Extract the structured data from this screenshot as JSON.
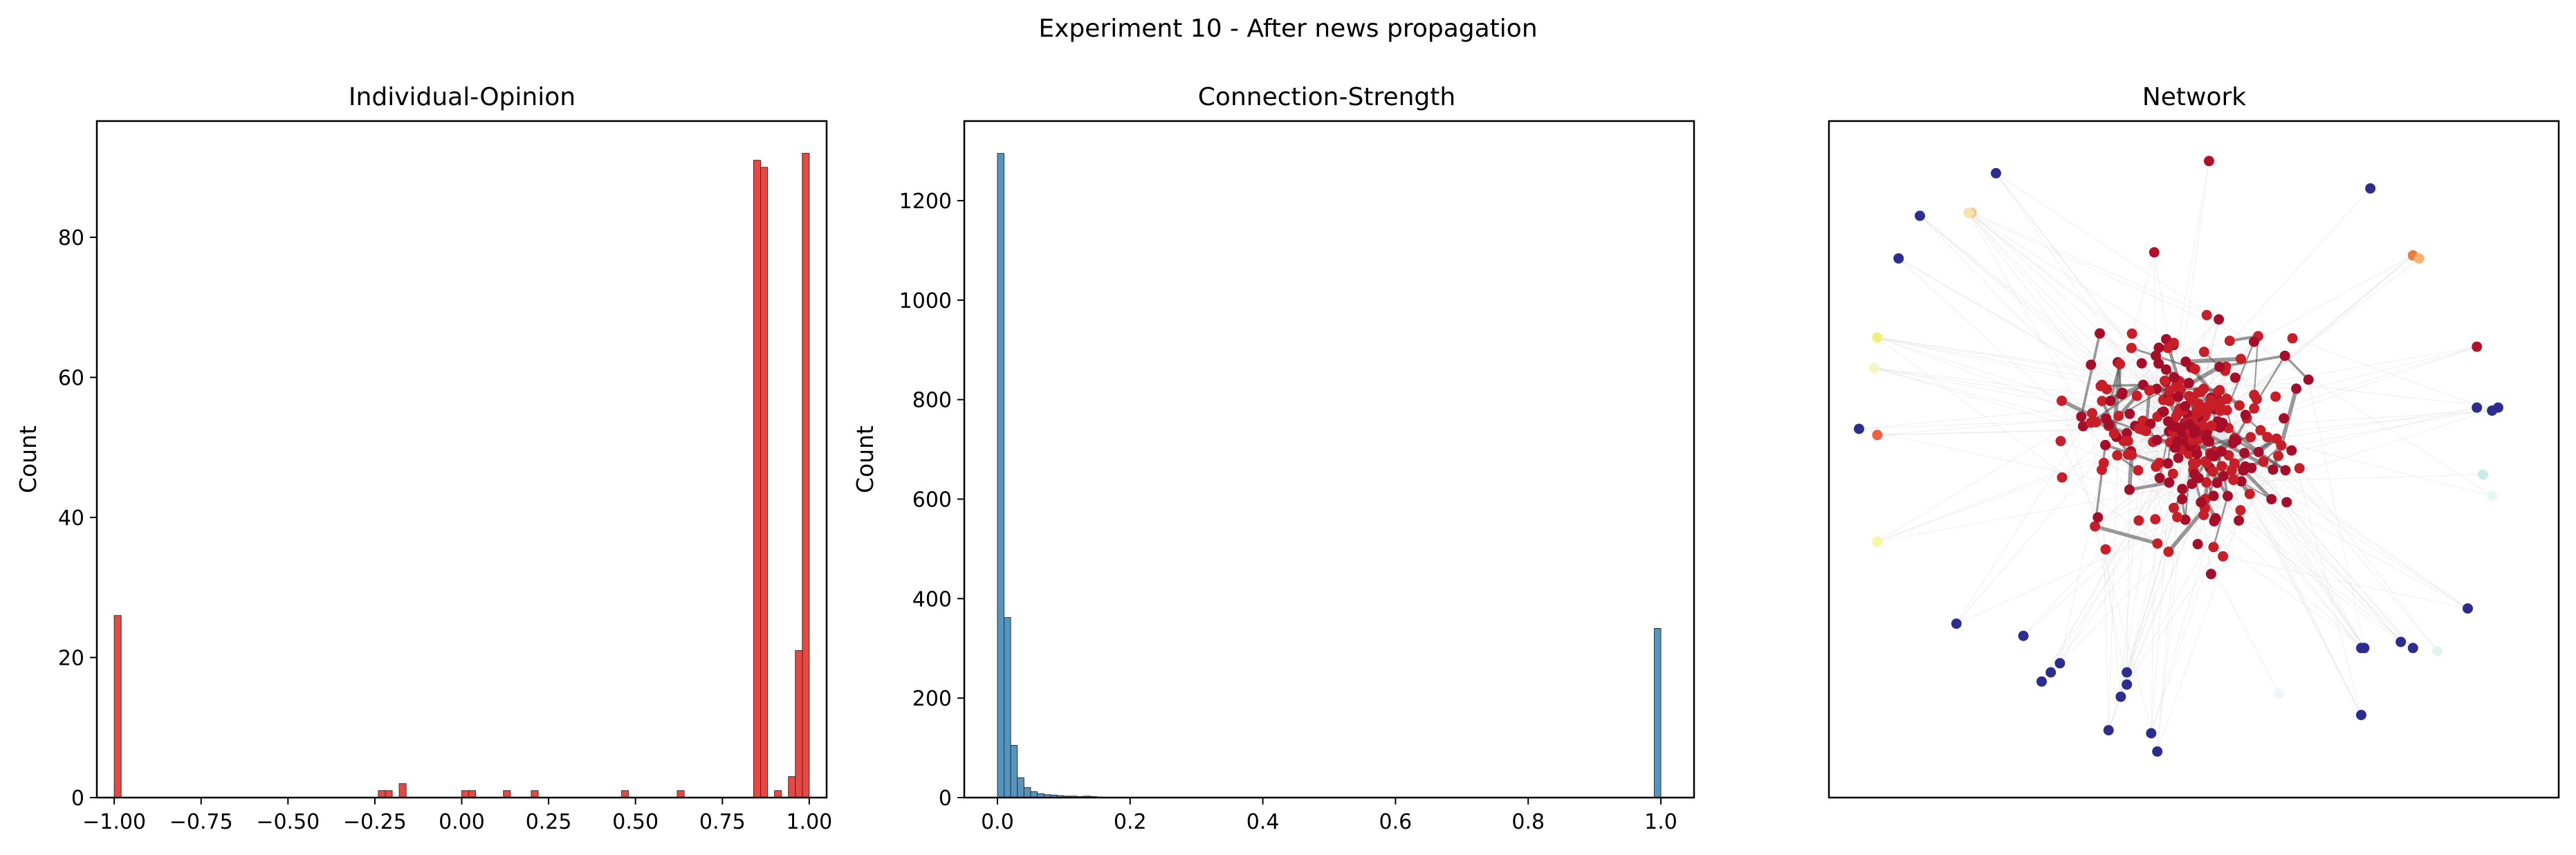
{
  "figure": {
    "suptitle": "Experiment 10 - After news propagation"
  },
  "chart_data": [
    {
      "type": "bar",
      "title": "Individual-Opinion",
      "xlabel": "",
      "ylabel": "Count",
      "xlim": [
        -1.05,
        1.05
      ],
      "ylim": [
        0,
        96.6
      ],
      "xticks": [
        -1.0,
        -0.75,
        -0.5,
        -0.25,
        0.0,
        0.25,
        0.5,
        0.75,
        1.0
      ],
      "xtick_labels": [
        "−1.00",
        "−0.75",
        "−0.50",
        "−0.25",
        "0.00",
        "0.25",
        "0.50",
        "0.75",
        "1.00"
      ],
      "yticks": [
        0,
        20,
        40,
        60,
        80
      ],
      "ytick_labels": [
        "0",
        "20",
        "40",
        "60",
        "80"
      ],
      "bar_color": "#e0201b",
      "bin_width": 0.02,
      "bars": [
        {
          "x": -1.0,
          "count": 26
        },
        {
          "x": -0.24,
          "count": 1
        },
        {
          "x": -0.22,
          "count": 1
        },
        {
          "x": -0.18,
          "count": 2
        },
        {
          "x": 0.0,
          "count": 1
        },
        {
          "x": 0.02,
          "count": 1
        },
        {
          "x": 0.12,
          "count": 1
        },
        {
          "x": 0.2,
          "count": 1
        },
        {
          "x": 0.46,
          "count": 1
        },
        {
          "x": 0.62,
          "count": 1
        },
        {
          "x": 0.84,
          "count": 91
        },
        {
          "x": 0.86,
          "count": 90
        },
        {
          "x": 0.9,
          "count": 1
        },
        {
          "x": 0.94,
          "count": 3
        },
        {
          "x": 0.96,
          "count": 21
        },
        {
          "x": 0.98,
          "count": 92
        }
      ]
    },
    {
      "type": "bar",
      "title": "Connection-Strength",
      "xlabel": "",
      "ylabel": "Count",
      "xlim": [
        -0.05,
        1.05
      ],
      "ylim": [
        0,
        1360
      ],
      "xticks": [
        0.0,
        0.2,
        0.4,
        0.6,
        0.8,
        1.0
      ],
      "xtick_labels": [
        "0.0",
        "0.2",
        "0.4",
        "0.6",
        "0.8",
        "1.0"
      ],
      "yticks": [
        0,
        200,
        400,
        600,
        800,
        1000,
        1200
      ],
      "ytick_labels": [
        "0",
        "200",
        "400",
        "600",
        "800",
        "1000",
        "1200"
      ],
      "bar_color": "#2e7cb0",
      "bin_width": 0.01,
      "bars": [
        {
          "x": 0.0,
          "count": 1295
        },
        {
          "x": 0.01,
          "count": 362
        },
        {
          "x": 0.02,
          "count": 105
        },
        {
          "x": 0.03,
          "count": 40
        },
        {
          "x": 0.04,
          "count": 20
        },
        {
          "x": 0.05,
          "count": 12
        },
        {
          "x": 0.06,
          "count": 8
        },
        {
          "x": 0.07,
          "count": 6
        },
        {
          "x": 0.08,
          "count": 5
        },
        {
          "x": 0.09,
          "count": 4
        },
        {
          "x": 0.1,
          "count": 3
        },
        {
          "x": 0.11,
          "count": 3
        },
        {
          "x": 0.12,
          "count": 2
        },
        {
          "x": 0.13,
          "count": 3
        },
        {
          "x": 0.14,
          "count": 2
        },
        {
          "x": 0.15,
          "count": 1
        },
        {
          "x": 0.99,
          "count": 340
        }
      ]
    },
    {
      "type": "scatter",
      "title": "Network",
      "xlabel": "",
      "ylabel": "",
      "xlim": [
        -1.0,
        1.0
      ],
      "ylim": [
        -1.0,
        1.0
      ],
      "grid": false,
      "edge_color_weak": "#e0e0e0",
      "edge_color_strong": "#555555",
      "outlier_nodes": [
        {
          "x": -0.65,
          "y": 0.94,
          "c": "#2b2e8f"
        },
        {
          "x": 0.05,
          "y": 0.98,
          "c": "#b5102a"
        },
        {
          "x": 0.58,
          "y": 0.89,
          "c": "#2b2e8f"
        },
        {
          "x": -0.9,
          "y": 0.8,
          "c": "#2b2e8f"
        },
        {
          "x": -0.97,
          "y": 0.66,
          "c": "#2b2e8f"
        },
        {
          "x": -0.73,
          "y": 0.81,
          "c": "#f5c890"
        },
        {
          "x": -0.74,
          "y": 0.81,
          "c": "#f9e0b0"
        },
        {
          "x": -0.13,
          "y": 0.68,
          "c": "#b5102a"
        },
        {
          "x": 0.72,
          "y": 0.67,
          "c": "#f07a3e"
        },
        {
          "x": 0.74,
          "y": 0.66,
          "c": "#f9b070"
        },
        {
          "x": -1.04,
          "y": 0.4,
          "c": "#eef07a"
        },
        {
          "x": -1.05,
          "y": 0.3,
          "c": "#f4f6c0"
        },
        {
          "x": 0.93,
          "y": 0.37,
          "c": "#b5102a"
        },
        {
          "x": 0.93,
          "y": 0.17,
          "c": "#2b2e8f"
        },
        {
          "x": 0.98,
          "y": 0.16,
          "c": "#2b2e8f"
        },
        {
          "x": 1.0,
          "y": 0.17,
          "c": "#2b2e8f"
        },
        {
          "x": -1.1,
          "y": 0.1,
          "c": "#2b2e8f"
        },
        {
          "x": -1.04,
          "y": 0.08,
          "c": "#f06040"
        },
        {
          "x": 0.95,
          "y": -0.05,
          "c": "#c8ecea"
        },
        {
          "x": 0.98,
          "y": -0.12,
          "c": "#e8f6f4"
        },
        {
          "x": -1.04,
          "y": -0.27,
          "c": "#f4f8a0"
        },
        {
          "x": -0.78,
          "y": -0.54,
          "c": "#2b2e8f"
        },
        {
          "x": -0.56,
          "y": -0.58,
          "c": "#2b2e8f"
        },
        {
          "x": 0.68,
          "y": -0.6,
          "c": "#2b2e8f"
        },
        {
          "x": 0.9,
          "y": -0.49,
          "c": "#2b2e8f"
        },
        {
          "x": 0.55,
          "y": -0.62,
          "c": "#2b2e8f"
        },
        {
          "x": 0.56,
          "y": -0.62,
          "c": "#2b2e8f"
        },
        {
          "x": 0.72,
          "y": -0.62,
          "c": "#2b2e8f"
        },
        {
          "x": 0.8,
          "y": -0.63,
          "c": "#dff3ef"
        },
        {
          "x": -0.44,
          "y": -0.67,
          "c": "#2b2e8f"
        },
        {
          "x": -0.47,
          "y": -0.7,
          "c": "#2b2e8f"
        },
        {
          "x": -0.5,
          "y": -0.73,
          "c": "#2b2e8f"
        },
        {
          "x": -0.22,
          "y": -0.7,
          "c": "#2b2e8f"
        },
        {
          "x": -0.22,
          "y": -0.74,
          "c": "#2b2e8f"
        },
        {
          "x": -0.24,
          "y": -0.78,
          "c": "#2b2e8f"
        },
        {
          "x": -0.28,
          "y": -0.89,
          "c": "#2b2e8f"
        },
        {
          "x": -0.14,
          "y": -0.9,
          "c": "#2b2e8f"
        },
        {
          "x": -0.12,
          "y": -0.96,
          "c": "#2b2e8f"
        },
        {
          "x": 0.55,
          "y": -0.84,
          "c": "#2b2e8f"
        },
        {
          "x": 0.28,
          "y": -0.77,
          "c": "#eef4f8"
        }
      ],
      "cluster": {
        "center": [
          0.0,
          0.1
        ],
        "radius": 0.46,
        "node_count": 300,
        "node_color": "#c81e28",
        "node_color_alt": "#a50d28"
      }
    }
  ]
}
